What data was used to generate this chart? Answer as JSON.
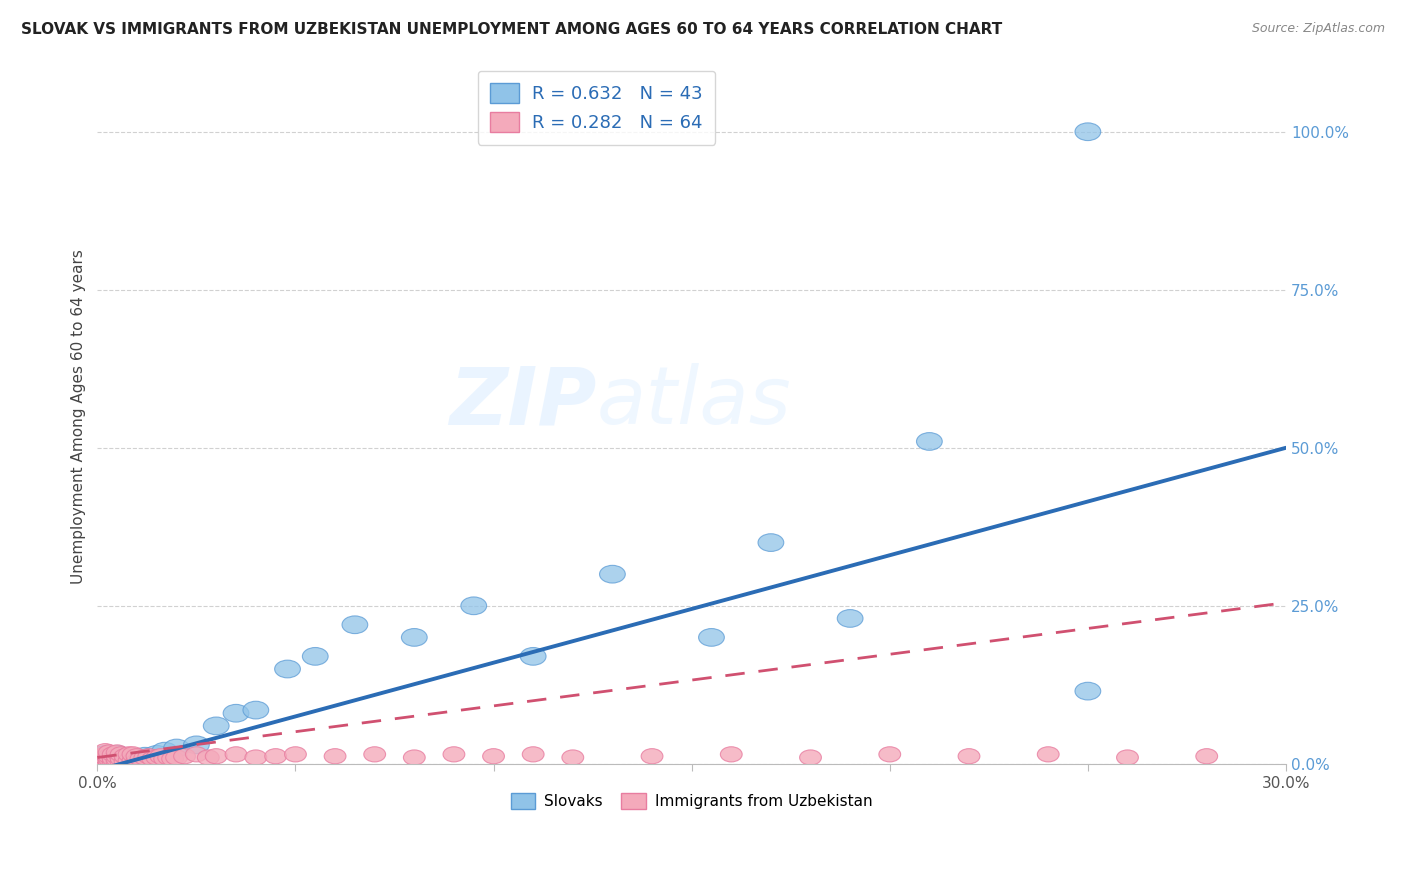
{
  "title": "SLOVAK VS IMMIGRANTS FROM UZBEKISTAN UNEMPLOYMENT AMONG AGES 60 TO 64 YEARS CORRELATION CHART",
  "source": "Source: ZipAtlas.com",
  "ylabel": "Unemployment Among Ages 60 to 64 years",
  "xlim": [
    0.0,
    0.3
  ],
  "ylim": [
    0.0,
    1.1
  ],
  "xticks": [
    0.0,
    0.05,
    0.1,
    0.15,
    0.2,
    0.25,
    0.3
  ],
  "xticklabels": [
    "0.0%",
    "",
    "",
    "",
    "",
    "",
    "30.0%"
  ],
  "yticks_right": [
    0.0,
    0.25,
    0.5,
    0.75,
    1.0
  ],
  "yticklabels_right": [
    "0.0%",
    "25.0%",
    "50.0%",
    "75.0%",
    "100.0%"
  ],
  "blue_color": "#90C3E8",
  "blue_edge": "#5B9BD5",
  "pink_color": "#F4AABB",
  "pink_edge": "#E87DA0",
  "trend_blue_color": "#2B6CB5",
  "trend_pink_color": "#D05070",
  "legend_label_blue": "Slovaks",
  "legend_label_pink": "Immigrants from Uzbekistan",
  "watermark": "ZIPatlas",
  "blue_line_x0": 0.0,
  "blue_line_y0": -0.01,
  "blue_line_x1": 0.3,
  "blue_line_y1": 0.5,
  "pink_line_x0": 0.0,
  "pink_line_y0": 0.01,
  "pink_line_x1": 0.3,
  "pink_line_y1": 0.255,
  "blue_x": [
    0.001,
    0.001,
    0.002,
    0.002,
    0.002,
    0.003,
    0.003,
    0.003,
    0.004,
    0.004,
    0.005,
    0.005,
    0.005,
    0.006,
    0.006,
    0.007,
    0.007,
    0.008,
    0.009,
    0.01,
    0.011,
    0.012,
    0.013,
    0.015,
    0.017,
    0.02,
    0.025,
    0.03,
    0.035,
    0.04,
    0.048,
    0.055,
    0.065,
    0.08,
    0.095,
    0.11,
    0.13,
    0.155,
    0.17,
    0.19,
    0.21,
    0.25,
    0.25
  ],
  "blue_y": [
    0.005,
    0.01,
    0.005,
    0.01,
    0.015,
    0.005,
    0.01,
    0.015,
    0.005,
    0.01,
    0.005,
    0.01,
    0.015,
    0.005,
    0.01,
    0.005,
    0.01,
    0.008,
    0.006,
    0.01,
    0.008,
    0.012,
    0.01,
    0.015,
    0.02,
    0.025,
    0.03,
    0.06,
    0.08,
    0.085,
    0.15,
    0.17,
    0.22,
    0.2,
    0.25,
    0.17,
    0.3,
    0.2,
    0.35,
    0.23,
    0.51,
    0.115,
    1.0
  ],
  "pink_x": [
    0.001,
    0.001,
    0.001,
    0.001,
    0.002,
    0.002,
    0.002,
    0.002,
    0.002,
    0.003,
    0.003,
    0.003,
    0.003,
    0.004,
    0.004,
    0.004,
    0.005,
    0.005,
    0.005,
    0.005,
    0.006,
    0.006,
    0.006,
    0.007,
    0.007,
    0.008,
    0.008,
    0.009,
    0.009,
    0.01,
    0.01,
    0.011,
    0.012,
    0.013,
    0.014,
    0.015,
    0.016,
    0.017,
    0.018,
    0.019,
    0.02,
    0.022,
    0.025,
    0.028,
    0.03,
    0.035,
    0.04,
    0.045,
    0.05,
    0.06,
    0.07,
    0.08,
    0.09,
    0.1,
    0.11,
    0.12,
    0.14,
    0.16,
    0.18,
    0.2,
    0.22,
    0.24,
    0.26,
    0.28
  ],
  "pink_y": [
    0.003,
    0.005,
    0.008,
    0.012,
    0.003,
    0.006,
    0.01,
    0.015,
    0.02,
    0.003,
    0.008,
    0.012,
    0.018,
    0.004,
    0.008,
    0.015,
    0.003,
    0.007,
    0.012,
    0.018,
    0.003,
    0.008,
    0.015,
    0.004,
    0.012,
    0.005,
    0.015,
    0.005,
    0.015,
    0.004,
    0.012,
    0.008,
    0.01,
    0.012,
    0.008,
    0.01,
    0.012,
    0.008,
    0.01,
    0.008,
    0.01,
    0.012,
    0.015,
    0.01,
    0.012,
    0.015,
    0.01,
    0.012,
    0.015,
    0.012,
    0.015,
    0.01,
    0.015,
    0.012,
    0.015,
    0.01,
    0.012,
    0.015,
    0.01,
    0.015,
    0.012,
    0.015,
    0.01,
    0.012
  ]
}
